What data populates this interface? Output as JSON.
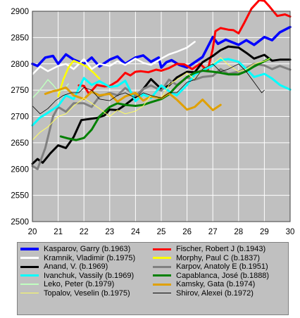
{
  "chart_data": {
    "type": "line",
    "title": "",
    "xlabel": "",
    "ylabel": "",
    "xlim": [
      20,
      30
    ],
    "ylim": [
      2500,
      2900
    ],
    "x_ticks": [
      20,
      21,
      22,
      23,
      24,
      25,
      26,
      27,
      28,
      29,
      30
    ],
    "y_ticks": [
      2500,
      2550,
      2600,
      2650,
      2700,
      2750,
      2800,
      2850,
      2900
    ],
    "grid": true,
    "plot_background": "#c0c0c0",
    "legend_position": "bottom",
    "series": [
      {
        "name": "Kasparov, Garry (b.1963)",
        "color": "#0000ff",
        "width": 3.5,
        "x": [
          20.0,
          20.2,
          20.5,
          20.8,
          21.0,
          21.3,
          21.6,
          22.0,
          22.3,
          22.6,
          23.0,
          23.3,
          23.6,
          24.0,
          24.3,
          24.6,
          24.9,
          25.0,
          25.2,
          25.4,
          25.7,
          26.0,
          26.3,
          26.6,
          26.8,
          27.0,
          27.2,
          27.5,
          27.8,
          28.0,
          28.3,
          28.6,
          29.0,
          29.3,
          29.6,
          30.0
        ],
        "y": [
          2800,
          2796,
          2812,
          2815,
          2800,
          2818,
          2808,
          2800,
          2812,
          2795,
          2808,
          2814,
          2800,
          2812,
          2816,
          2804,
          2812,
          2793,
          2803,
          2807,
          2798,
          2793,
          2803,
          2813,
          2832,
          2851,
          2838,
          2846,
          2840,
          2836,
          2845,
          2836,
          2851,
          2845,
          2860,
          2870
        ]
      },
      {
        "name": "Fischer, Robert J (b.1943)",
        "color": "#ff0000",
        "width": 3,
        "x": [
          21.8,
          22.0,
          22.2,
          22.5,
          22.8,
          23.0,
          23.3,
          23.6,
          23.8,
          24.0,
          24.2,
          24.5,
          24.8,
          25.0,
          25.3,
          25.6,
          25.9,
          26.2,
          26.5,
          26.8,
          27.0,
          27.1,
          27.3,
          27.6,
          27.8,
          28.0,
          28.2,
          28.5,
          28.8,
          29.0,
          29.2,
          29.5,
          29.8,
          30.0
        ],
        "y": [
          2759,
          2758,
          2743,
          2760,
          2757,
          2758,
          2767,
          2783,
          2778,
          2785,
          2786,
          2784,
          2789,
          2787,
          2792,
          2800,
          2799,
          2790,
          2800,
          2787,
          2829,
          2862,
          2868,
          2865,
          2864,
          2858,
          2876,
          2905,
          2921,
          2920,
          2909,
          2891,
          2894,
          2890
        ]
      },
      {
        "name": "Kramnik, Vladimir (b.1975)",
        "color": "#ffffff",
        "width": 2.5,
        "x": [
          20.0,
          20.3,
          20.6,
          21.0,
          21.3,
          21.6,
          22.0,
          22.3,
          22.6,
          23.0,
          23.3,
          23.6,
          24.0,
          24.3,
          24.6,
          25.0,
          25.3,
          25.6,
          26.0,
          26.3
        ],
        "y": [
          2780,
          2795,
          2786,
          2796,
          2800,
          2790,
          2809,
          2790,
          2800,
          2796,
          2805,
          2798,
          2810,
          2802,
          2798,
          2810,
          2818,
          2823,
          2831,
          2842
        ]
      },
      {
        "name": "Morphy, Paul C (b.1837)",
        "color": "#ffff00",
        "width": 2.5,
        "x": [
          21.0,
          21.2,
          21.4,
          21.6,
          21.9,
          22.1,
          22.4,
          22.6
        ],
        "y": [
          2738,
          2770,
          2793,
          2806,
          2800,
          2795,
          2782,
          2772
        ]
      },
      {
        "name": "Anand, V. (b.1969)",
        "color": "#000000",
        "width": 3,
        "x": [
          20.0,
          20.2,
          20.4,
          20.7,
          21.0,
          21.3,
          21.6,
          21.9,
          22.2,
          22.5,
          22.8,
          23.0,
          23.3,
          23.6,
          24.0,
          24.3,
          24.6,
          25.0,
          25.3,
          25.6,
          26.0,
          26.3,
          26.6,
          27.0,
          27.3,
          27.6,
          28.0,
          28.3,
          28.6,
          29.0,
          29.3,
          29.6,
          30.0
        ],
        "y": [
          2610,
          2619,
          2612,
          2630,
          2645,
          2640,
          2661,
          2693,
          2695,
          2697,
          2702,
          2713,
          2712,
          2722,
          2737,
          2752,
          2771,
          2752,
          2759,
          2774,
          2785,
          2784,
          2803,
          2815,
          2826,
          2833,
          2831,
          2821,
          2810,
          2817,
          2806,
          2808,
          2808
        ]
      },
      {
        "name": "Karpov, Anatoly E (b.1951)",
        "color": "#808080",
        "width": 3,
        "x": [
          20.0,
          20.2,
          20.5,
          20.8,
          21.0,
          21.3,
          21.6,
          22.0,
          22.3,
          22.6,
          23.0,
          23.3,
          23.6,
          24.0,
          24.3,
          24.6,
          25.0,
          25.3,
          25.6,
          26.0,
          26.3,
          26.6,
          27.0,
          27.3,
          27.6,
          28.0,
          28.3,
          28.6,
          29.0,
          29.3,
          29.6,
          30.0
        ],
        "y": [
          2606,
          2600,
          2640,
          2700,
          2718,
          2709,
          2725,
          2725,
          2718,
          2738,
          2745,
          2740,
          2754,
          2739,
          2752,
          2759,
          2749,
          2770,
          2760,
          2774,
          2770,
          2775,
          2777,
          2790,
          2781,
          2785,
          2792,
          2800,
          2797,
          2790,
          2796,
          2789
        ]
      },
      {
        "name": "Ivanchuk, Vassily (b.1969)",
        "color": "#00ffff",
        "width": 3,
        "x": [
          20.0,
          20.3,
          20.6,
          21.0,
          21.3,
          21.6,
          22.0,
          22.3,
          22.6,
          23.0,
          23.3,
          23.6,
          24.0,
          24.3,
          24.6,
          25.0,
          25.3,
          25.6,
          26.0,
          26.3,
          26.6,
          27.0,
          27.3,
          27.6,
          28.0,
          28.3,
          28.6,
          29.0,
          29.3,
          29.6,
          30.0
        ],
        "y": [
          2683,
          2698,
          2707,
          2720,
          2740,
          2733,
          2773,
          2760,
          2767,
          2756,
          2758,
          2768,
          2729,
          2742,
          2735,
          2759,
          2748,
          2740,
          2760,
          2780,
          2787,
          2797,
          2807,
          2809,
          2804,
          2790,
          2775,
          2781,
          2772,
          2760,
          2751
        ]
      },
      {
        "name": "Capablanca, José (b.1888)",
        "color": "#008000",
        "width": 3,
        "x": [
          21.1,
          21.4,
          21.7,
          22.0,
          22.3,
          22.6,
          23.0,
          23.3,
          23.6,
          24.0,
          24.3,
          24.6,
          25.0,
          25.3,
          25.6,
          26.0,
          26.3,
          26.6,
          27.0,
          27.3,
          27.6,
          28.0,
          28.3,
          28.6,
          29.0,
          29.2
        ],
        "y": [
          2662,
          2658,
          2655,
          2659,
          2675,
          2700,
          2718,
          2725,
          2722,
          2720,
          2722,
          2727,
          2733,
          2742,
          2758,
          2775,
          2783,
          2787,
          2785,
          2783,
          2780,
          2780,
          2786,
          2795,
          2805,
          2810
        ]
      },
      {
        "name": "Leko, Peter (b.1979)",
        "color": "#c0ffc0",
        "width": 1.5,
        "x": [
          20.0,
          20.2,
          20.4,
          20.6,
          20.8,
          21.0,
          21.2,
          21.4
        ],
        "y": [
          2735,
          2745,
          2757,
          2770,
          2760,
          2748,
          2750,
          2762
        ]
      },
      {
        "name": "Kamsky, Gata (b.1974)",
        "color": "#e0a000",
        "width": 3,
        "x": [
          20.5,
          20.8,
          21.0,
          21.3,
          21.6,
          22.0,
          22.3,
          22.6,
          23.0,
          23.3,
          23.6,
          24.0,
          24.3,
          24.6,
          25.0,
          25.3,
          25.6,
          26.0,
          26.3,
          26.6,
          27.0,
          27.3
        ],
        "y": [
          2743,
          2748,
          2750,
          2755,
          2740,
          2733,
          2747,
          2740,
          2743,
          2728,
          2738,
          2745,
          2730,
          2738,
          2735,
          2744,
          2732,
          2713,
          2718,
          2732,
          2712,
          2722
        ]
      },
      {
        "name": "Topalov, Veselin (b.1975)",
        "color": "#ffff60",
        "width": 1,
        "x": [
          20.0,
          20.3,
          20.6,
          21.0,
          21.3,
          21.6,
          22.0,
          22.3,
          22.6,
          23.0,
          23.3,
          23.6,
          24.0,
          24.3,
          24.6,
          25.0,
          25.3,
          25.6,
          26.0,
          26.3,
          26.6,
          27.0,
          27.3,
          27.6,
          28.0,
          28.3,
          28.6,
          29.0,
          29.2
        ],
        "y": [
          2655,
          2670,
          2680,
          2700,
          2705,
          2720,
          2735,
          2725,
          2715,
          2700,
          2712,
          2705,
          2710,
          2720,
          2740,
          2735,
          2760,
          2770,
          2783,
          2770,
          2790,
          2800,
          2812,
          2798,
          2785,
          2790,
          2800,
          2805,
          2810
        ]
      },
      {
        "name": "Shirov, Alexei (b.1972)",
        "color": "#000000",
        "width": 0.8,
        "x": [
          20.0,
          20.3,
          20.6,
          20.9,
          21.2,
          21.5,
          21.8,
          22.0,
          22.3,
          22.6,
          23.0,
          23.3,
          23.6,
          24.0,
          24.3,
          24.6,
          25.0,
          25.3,
          25.6,
          26.0,
          26.3,
          26.6,
          27.0,
          27.3,
          27.6,
          28.0,
          28.3,
          28.6,
          28.9,
          29.0
        ],
        "y": [
          2720,
          2705,
          2715,
          2730,
          2740,
          2745,
          2745,
          2755,
          2750,
          2733,
          2730,
          2740,
          2745,
          2735,
          2745,
          2740,
          2735,
          2745,
          2745,
          2765,
          2770,
          2790,
          2800,
          2785,
          2790,
          2800,
          2785,
          2765,
          2745,
          2750
        ]
      }
    ]
  }
}
